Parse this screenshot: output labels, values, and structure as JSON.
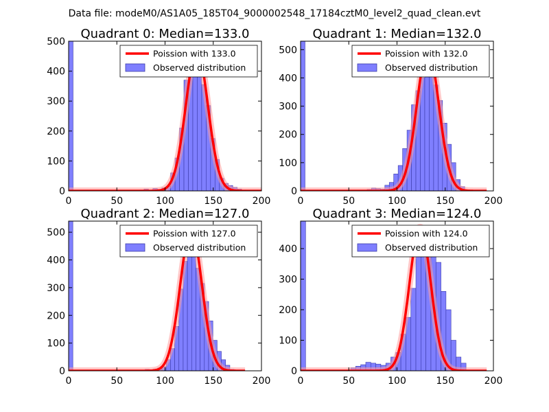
{
  "suptitle": "Data file: modeM0/AS1A05_185T04_9000002548_17184cztM0_level2_quad_clean.evt",
  "colors": {
    "bars": "#7f7fff",
    "bar_edge": "#3a3aa8",
    "fit": "#ff0000",
    "fit_glow": "#ff9a9a",
    "axes": "#000000"
  },
  "legend_labels": {
    "observed": "Observed distribution"
  },
  "chart_data": [
    {
      "type": "bar",
      "title": "Quadrant 0: Median=133.0",
      "xlim": [
        0,
        200
      ],
      "ylim": [
        0,
        500
      ],
      "xticks": [
        0,
        50,
        100,
        150,
        200
      ],
      "yticks": [
        0,
        100,
        200,
        300,
        400,
        500
      ],
      "bin_width": 4.6,
      "bin_starts": [
        0,
        73.6,
        78.2,
        82.8,
        87.4,
        92.0,
        96.6,
        101.2,
        105.8,
        110.4,
        115.0,
        119.6,
        124.2,
        128.8,
        133.4,
        138.0,
        142.6,
        147.2,
        151.8,
        156.4,
        161.0,
        165.6,
        170.2,
        174.8,
        179.4
      ],
      "values": [
        500,
        3,
        6,
        2,
        8,
        5,
        10,
        15,
        60,
        110,
        210,
        370,
        405,
        475,
        440,
        355,
        285,
        175,
        105,
        42,
        25,
        18,
        12,
        6,
        3
      ],
      "fit_legend": "Poission with 133.0",
      "fit_mean": 133.0,
      "fit_peak": 470,
      "fit_sigma": 11.5,
      "fit_range": [
        0,
        200
      ]
    },
    {
      "type": "bar",
      "title": "Quadrant 1: Median=132.0",
      "xlim": [
        0,
        200
      ],
      "ylim": [
        0,
        530
      ],
      "xticks": [
        0,
        50,
        100,
        150,
        200
      ],
      "yticks": [
        0,
        100,
        200,
        300,
        400,
        500
      ],
      "bin_width": 4.6,
      "bin_starts": [
        0,
        69.0,
        73.6,
        78.2,
        82.8,
        87.4,
        92.0,
        96.6,
        101.2,
        105.8,
        110.4,
        115.0,
        119.6,
        124.2,
        128.8,
        133.4,
        138.0,
        142.6,
        147.2,
        151.8,
        156.4,
        161.0,
        165.6
      ],
      "values": [
        530,
        5,
        10,
        8,
        6,
        20,
        30,
        60,
        90,
        150,
        215,
        305,
        355,
        400,
        490,
        445,
        375,
        320,
        240,
        165,
        100,
        40,
        15
      ],
      "fit_legend": "Poission with 132.0",
      "fit_mean": 132.0,
      "fit_peak": 500,
      "fit_sigma": 11.5,
      "fit_range": [
        0,
        193
      ]
    },
    {
      "type": "bar",
      "title": "Quadrant 2: Median=127.0",
      "xlim": [
        0,
        200
      ],
      "ylim": [
        0,
        540
      ],
      "xticks": [
        0,
        50,
        100,
        150,
        200
      ],
      "yticks": [
        0,
        100,
        200,
        300,
        400,
        500
      ],
      "bin_width": 4.4,
      "bin_starts": [
        0,
        70.4,
        74.8,
        79.2,
        83.6,
        88.0,
        92.4,
        96.8,
        101.2,
        105.6,
        110.0,
        114.4,
        118.8,
        123.2,
        127.6,
        132.0,
        136.4,
        140.8,
        145.2,
        149.6,
        154.0,
        158.4,
        162.8,
        167.2
      ],
      "values": [
        540,
        3,
        2,
        5,
        4,
        6,
        10,
        15,
        40,
        80,
        160,
        295,
        395,
        505,
        490,
        370,
        315,
        250,
        180,
        110,
        70,
        40,
        20,
        5
      ],
      "fit_legend": "Poission with 127.0",
      "fit_mean": 127.0,
      "fit_peak": 510,
      "fit_sigma": 11.3,
      "fit_range": [
        0,
        183
      ]
    },
    {
      "type": "bar",
      "title": "Quadrant 3: Median=124.0",
      "xlim": [
        0,
        200
      ],
      "ylim": [
        0,
        490
      ],
      "xticks": [
        0,
        50,
        100,
        150,
        200
      ],
      "yticks": [
        0,
        100,
        200,
        300,
        400
      ],
      "bin_width": 5.2,
      "bin_starts": [
        0,
        52.0,
        57.2,
        62.4,
        67.6,
        72.8,
        78.0,
        83.2,
        88.4,
        93.6,
        98.8,
        104.0,
        109.2,
        114.4,
        119.6,
        124.8,
        130.0,
        135.2,
        140.4,
        145.6,
        150.8,
        156.0,
        161.2,
        166.4
      ],
      "values": [
        490,
        10,
        15,
        20,
        28,
        25,
        22,
        18,
        25,
        45,
        60,
        120,
        175,
        270,
        380,
        450,
        435,
        390,
        355,
        260,
        200,
        100,
        45,
        25
      ],
      "fit_legend": "Poission with 124.0",
      "fit_mean": 124.0,
      "fit_peak": 470,
      "fit_sigma": 11.1,
      "fit_range": [
        0,
        193
      ]
    }
  ]
}
